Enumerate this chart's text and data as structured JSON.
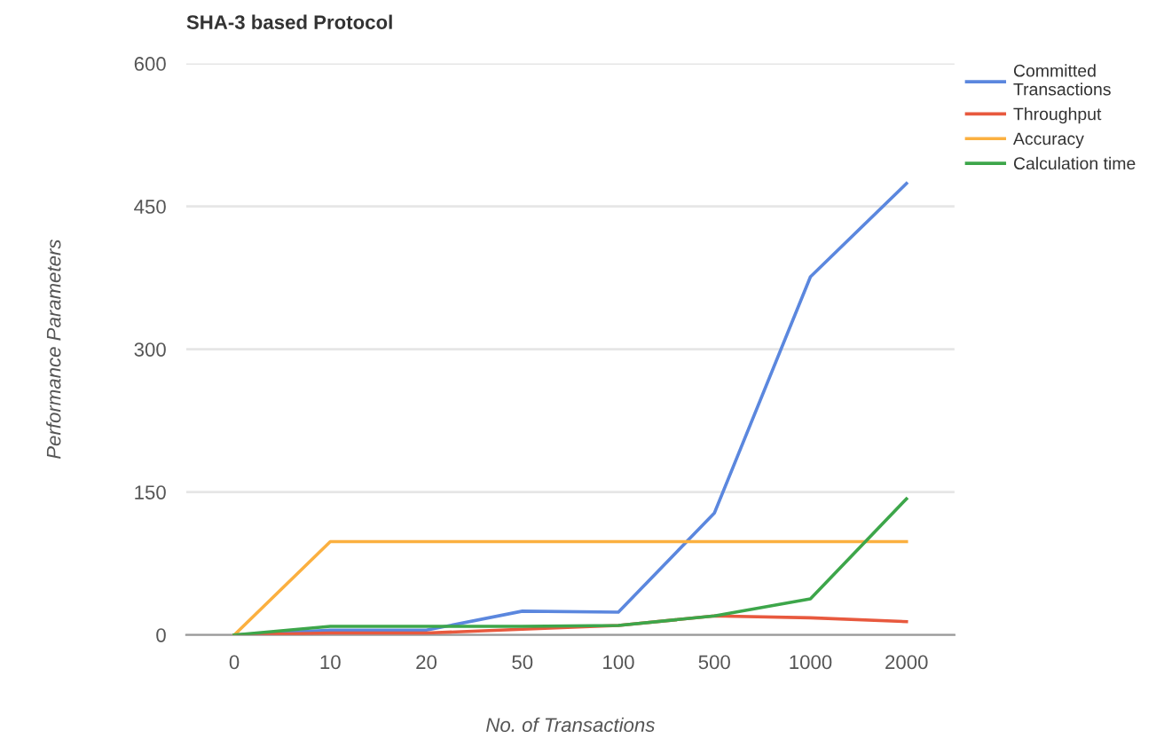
{
  "chart_data": {
    "type": "line",
    "title": "SHA-3 based Protocol",
    "xlabel": "No. of Transactions",
    "ylabel": "Performance Parameters",
    "categories": [
      "0",
      "10",
      "20",
      "50",
      "100",
      "500",
      "1000",
      "2000"
    ],
    "series": [
      {
        "name": "Committed Transactions",
        "color": "#5b87de",
        "values": [
          0,
          5,
          5,
          25,
          24,
          128,
          376,
          474
        ]
      },
      {
        "name": "Throughput",
        "color": "#e8593e",
        "values": [
          0,
          2,
          2,
          6,
          10,
          20,
          18,
          14
        ]
      },
      {
        "name": "Accuracy",
        "color": "#fbb040",
        "values": [
          0,
          98,
          98,
          98,
          98,
          98,
          98,
          98
        ]
      },
      {
        "name": "Calculation time",
        "color": "#3da64a",
        "values": [
          0,
          9,
          9,
          9,
          10,
          20,
          38,
          143
        ]
      }
    ],
    "ylim": [
      0,
      600
    ],
    "yticks": [
      0,
      150,
      300,
      450,
      600
    ],
    "grid": "y",
    "legend": "top right",
    "marker": "none",
    "line_style": "solid"
  }
}
